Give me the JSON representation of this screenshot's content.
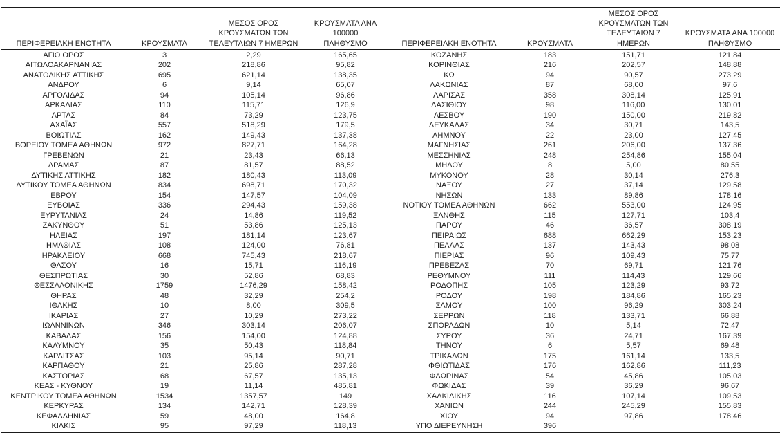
{
  "colors": {
    "text": "#1f1f1f",
    "border": "#1a1a1a",
    "background": "#ffffff"
  },
  "table": {
    "headers": [
      "ΠΕΡΙΦΕΡΕΙΑΚΗ ΕΝΟΤΗΤΑ",
      "ΚΡΟΥΣΜΑΤΑ",
      "ΜΕΣΟΣ ΟΡΟΣ\nΚΡΟΥΣΜΑΤΩΝ ΤΩΝ\nΤΕΛΕΥΤΑΙΩΝ 7 ΗΜΕΡΩΝ",
      "ΚΡΟΥΣΜΑΤΑ ΑΝΑ 100000\nΠΛΗΘΥΣΜΟ"
    ],
    "left_rows": [
      [
        "ΑΓΙΟ ΟΡΟΣ",
        "3",
        "2,29",
        "165,65"
      ],
      [
        "ΑΙΤΩΛΟΑΚΑΡΝΑΝΙΑΣ",
        "202",
        "218,86",
        "95,82"
      ],
      [
        "ΑΝΑΤΟΛΙΚΗΣ ΑΤΤΙΚΗΣ",
        "695",
        "621,14",
        "138,35"
      ],
      [
        "ΑΝΔΡΟΥ",
        "6",
        "9,14",
        "65,07"
      ],
      [
        "ΑΡΓΟΛΙΔΑΣ",
        "94",
        "105,14",
        "96,86"
      ],
      [
        "ΑΡΚΑΔΙΑΣ",
        "110",
        "115,71",
        "126,9"
      ],
      [
        "ΑΡΤΑΣ",
        "84",
        "73,29",
        "123,75"
      ],
      [
        "ΑΧΑΪΑΣ",
        "557",
        "518,29",
        "179,5"
      ],
      [
        "ΒΟΙΩΤΙΑΣ",
        "162",
        "149,43",
        "137,38"
      ],
      [
        "ΒΟΡΕΙΟΥ ΤΟΜΕΑ ΑΘΗΝΩΝ",
        "972",
        "827,71",
        "164,28"
      ],
      [
        "ΓΡΕΒΕΝΩΝ",
        "21",
        "23,43",
        "66,13"
      ],
      [
        "ΔΡΑΜΑΣ",
        "87",
        "81,57",
        "88,52"
      ],
      [
        "ΔΥΤΙΚΗΣ ΑΤΤΙΚΗΣ",
        "182",
        "180,43",
        "113,09"
      ],
      [
        "ΔΥΤΙΚΟΥ ΤΟΜΕΑ ΑΘΗΝΩΝ",
        "834",
        "698,71",
        "170,32"
      ],
      [
        "ΕΒΡΟΥ",
        "154",
        "147,57",
        "104,09"
      ],
      [
        "ΕΥΒΟΙΑΣ",
        "336",
        "294,43",
        "159,38"
      ],
      [
        "ΕΥΡΥΤΑΝΙΑΣ",
        "24",
        "14,86",
        "119,52"
      ],
      [
        "ΖΑΚΥΝΘΟΥ",
        "51",
        "53,86",
        "125,13"
      ],
      [
        "ΗΛΕΙΑΣ",
        "197",
        "181,14",
        "123,67"
      ],
      [
        "ΗΜΑΘΙΑΣ",
        "108",
        "124,00",
        "76,81"
      ],
      [
        "ΗΡΑΚΛΕΙΟΥ",
        "668",
        "745,43",
        "218,67"
      ],
      [
        "ΘΑΣΟΥ",
        "16",
        "15,71",
        "116,19"
      ],
      [
        "ΘΕΣΠΡΩΤΙΑΣ",
        "30",
        "52,86",
        "68,83"
      ],
      [
        "ΘΕΣΣΑΛΟΝΙΚΗΣ",
        "1759",
        "1476,29",
        "158,42"
      ],
      [
        "ΘΗΡΑΣ",
        "48",
        "32,29",
        "254,2"
      ],
      [
        "ΙΘΑΚΗΣ",
        "10",
        "8,00",
        "309,5"
      ],
      [
        "ΙΚΑΡΙΑΣ",
        "27",
        "10,29",
        "273,22"
      ],
      [
        "ΙΩΑΝΝΙΝΩΝ",
        "346",
        "303,14",
        "206,07"
      ],
      [
        "ΚΑΒΑΛΑΣ",
        "156",
        "154,00",
        "124,88"
      ],
      [
        "ΚΑΛΥΜΝΟΥ",
        "35",
        "50,43",
        "118,84"
      ],
      [
        "ΚΑΡΔΙΤΣΑΣ",
        "103",
        "95,14",
        "90,71"
      ],
      [
        "ΚΑΡΠΑΘΟΥ",
        "21",
        "25,86",
        "287,28"
      ],
      [
        "ΚΑΣΤΟΡΙΑΣ",
        "68",
        "67,57",
        "135,13"
      ],
      [
        "ΚΕΑΣ - ΚΥΘΝΟΥ",
        "19",
        "11,14",
        "485,81"
      ],
      [
        "ΚΕΝΤΡΙΚΟΥ ΤΟΜΕΑ ΑΘΗΝΩΝ",
        "1534",
        "1357,57",
        "149"
      ],
      [
        "ΚΕΡΚΥΡΑΣ",
        "134",
        "142,71",
        "128,39"
      ],
      [
        "ΚΕΦΑΛΛΗΝΙΑΣ",
        "59",
        "48,00",
        "164,8"
      ],
      [
        "ΚΙΛΚΙΣ",
        "95",
        "97,29",
        "118,13"
      ]
    ],
    "right_rows": [
      [
        "ΚΟΖΑΝΗΣ",
        "183",
        "151,71",
        "121,84"
      ],
      [
        "ΚΟΡΙΝΘΙΑΣ",
        "216",
        "202,57",
        "148,88"
      ],
      [
        "ΚΩ",
        "94",
        "90,57",
        "273,29"
      ],
      [
        "ΛΑΚΩΝΙΑΣ",
        "87",
        "68,00",
        "97,6"
      ],
      [
        "ΛΑΡΙΣΑΣ",
        "358",
        "308,14",
        "125,91"
      ],
      [
        "ΛΑΣΙΘΙΟΥ",
        "98",
        "116,00",
        "130,01"
      ],
      [
        "ΛΕΣΒΟΥ",
        "190",
        "150,00",
        "219,82"
      ],
      [
        "ΛΕΥΚΑΔΑΣ",
        "34",
        "30,71",
        "143,5"
      ],
      [
        "ΛΗΜΝΟΥ",
        "22",
        "23,00",
        "127,45"
      ],
      [
        "ΜΑΓΝΗΣΙΑΣ",
        "261",
        "206,00",
        "137,36"
      ],
      [
        "ΜΕΣΣΗΝΙΑΣ",
        "248",
        "254,86",
        "155,04"
      ],
      [
        "ΜΗΛΟΥ",
        "8",
        "5,00",
        "80,55"
      ],
      [
        "ΜΥΚΟΝΟΥ",
        "28",
        "30,14",
        "276,3"
      ],
      [
        "ΝΑΞΟΥ",
        "27",
        "37,14",
        "129,58"
      ],
      [
        "ΝΗΣΩΝ",
        "133",
        "89,86",
        "178,16"
      ],
      [
        "ΝΟΤΙΟΥ ΤΟΜΕΑ ΑΘΗΝΩΝ",
        "662",
        "553,00",
        "124,95"
      ],
      [
        "ΞΑΝΘΗΣ",
        "115",
        "127,71",
        "103,4"
      ],
      [
        "ΠΑΡΟΥ",
        "46",
        "36,57",
        "308,19"
      ],
      [
        "ΠΕΙΡΑΙΩΣ",
        "688",
        "662,29",
        "153,23"
      ],
      [
        "ΠΕΛΛΑΣ",
        "137",
        "143,43",
        "98,08"
      ],
      [
        "ΠΙΕΡΙΑΣ",
        "96",
        "109,43",
        "75,77"
      ],
      [
        "ΠΡΕΒΕΖΑΣ",
        "70",
        "69,71",
        "121,76"
      ],
      [
        "ΡΕΘΥΜΝΟΥ",
        "111",
        "114,43",
        "129,66"
      ],
      [
        "ΡΟΔΟΠΗΣ",
        "105",
        "123,29",
        "93,72"
      ],
      [
        "ΡΟΔΟΥ",
        "198",
        "184,86",
        "165,23"
      ],
      [
        "ΣΑΜΟΥ",
        "100",
        "96,29",
        "303,24"
      ],
      [
        "ΣΕΡΡΩΝ",
        "118",
        "133,71",
        "66,88"
      ],
      [
        "ΣΠΟΡΑΔΩΝ",
        "10",
        "5,14",
        "72,47"
      ],
      [
        "ΣΥΡΟΥ",
        "36",
        "24,71",
        "167,39"
      ],
      [
        "ΤΗΝΟΥ",
        "6",
        "5,57",
        "69,48"
      ],
      [
        "ΤΡΙΚΑΛΩΝ",
        "175",
        "161,14",
        "133,5"
      ],
      [
        "ΦΘΙΩΤΙΔΑΣ",
        "176",
        "162,86",
        "111,23"
      ],
      [
        "ΦΛΩΡΙΝΑΣ",
        "54",
        "45,86",
        "105,03"
      ],
      [
        "ΦΩΚΙΔΑΣ",
        "39",
        "36,29",
        "96,67"
      ],
      [
        "ΧΑΛΚΙΔΙΚΗΣ",
        "116",
        "107,14",
        "109,53"
      ],
      [
        "ΧΑΝΙΩΝ",
        "244",
        "245,29",
        "155,83"
      ],
      [
        "ΧΙΟΥ",
        "94",
        "97,86",
        "178,46"
      ],
      [
        "ΥΠΟ ΔΙΕΡΕΥΝΗΣΗ",
        "396",
        "",
        ""
      ]
    ]
  }
}
